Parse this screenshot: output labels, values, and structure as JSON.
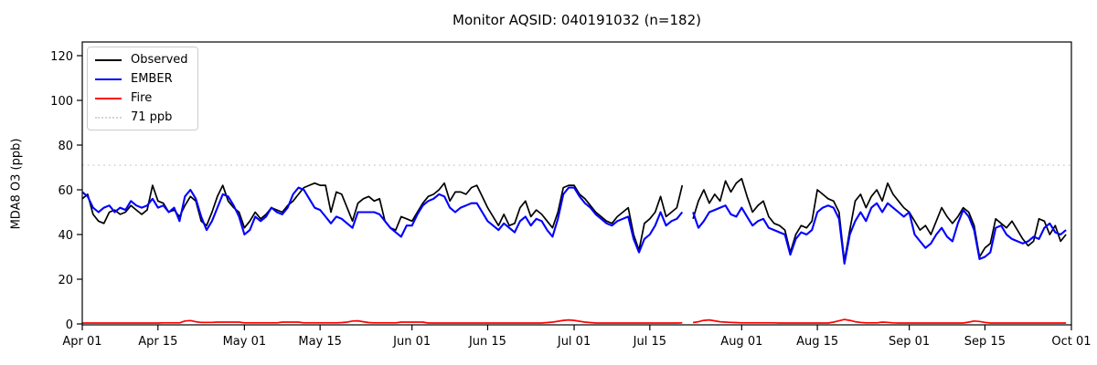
{
  "chart_data": {
    "type": "line",
    "title": "Monitor AQSID: 040191032 (n=182)",
    "xlabel": "",
    "ylabel": "MDA8 O3 (ppb)",
    "ylim": [
      0,
      126
    ],
    "yticks": [
      0,
      20,
      40,
      60,
      80,
      100,
      120
    ],
    "n_days": 183,
    "grid": false,
    "legend_position": "upper left",
    "xticks": [
      {
        "label": "Apr 01",
        "day": 0
      },
      {
        "label": "Apr 15",
        "day": 14
      },
      {
        "label": "May 01",
        "day": 30
      },
      {
        "label": "May 15",
        "day": 44
      },
      {
        "label": "Jun 01",
        "day": 61
      },
      {
        "label": "Jun 15",
        "day": 75
      },
      {
        "label": "Jul 01",
        "day": 91
      },
      {
        "label": "Jul 15",
        "day": 105
      },
      {
        "label": "Aug 01",
        "day": 122
      },
      {
        "label": "Aug 15",
        "day": 136
      },
      {
        "label": "Sep 01",
        "day": 153
      },
      {
        "label": "Sep 15",
        "day": 167
      },
      {
        "label": "Oct 01",
        "day": 183
      }
    ],
    "threshold": {
      "label": "71 ppb",
      "value": 71,
      "color": "#d3d3d3",
      "style": "dotted"
    },
    "series": [
      {
        "name": "Observed",
        "color": "#000000",
        "values": [
          56,
          58,
          49,
          46,
          45,
          50,
          51,
          49,
          50,
          53,
          51,
          49,
          51,
          62,
          55,
          54,
          50,
          51,
          48,
          53,
          57,
          55,
          46,
          44,
          50,
          57,
          62,
          55,
          52,
          50,
          43,
          46,
          50,
          47,
          49,
          52,
          51,
          50,
          53,
          55,
          58,
          61,
          62,
          63,
          62,
          62,
          50,
          59,
          58,
          52,
          46,
          54,
          56,
          57,
          55,
          56,
          46,
          43,
          42,
          48,
          47,
          46,
          50,
          54,
          57,
          58,
          60,
          63,
          55,
          59,
          59,
          58,
          61,
          62,
          57,
          52,
          48,
          44,
          49,
          44,
          45,
          52,
          55,
          48,
          51,
          49,
          46,
          43,
          50,
          61,
          62,
          62,
          58,
          56,
          53,
          50,
          48,
          46,
          45,
          48,
          50,
          52,
          40,
          33,
          45,
          47,
          50,
          57,
          48,
          50,
          52,
          62,
          null,
          47,
          55,
          60,
          54,
          58,
          55,
          64,
          59,
          63,
          65,
          57,
          50,
          53,
          55,
          48,
          45,
          44,
          42,
          32,
          40,
          44,
          43,
          46,
          60,
          58,
          56,
          55,
          50,
          28,
          42,
          55,
          58,
          52,
          57,
          60,
          55,
          63,
          58,
          55,
          52,
          50,
          46,
          42,
          44,
          40,
          46,
          52,
          48,
          45,
          48,
          52,
          50,
          44,
          30,
          34,
          36,
          47,
          45,
          43,
          46,
          42,
          38,
          35,
          37,
          47,
          46,
          40,
          44,
          37,
          40
        ]
      },
      {
        "name": "EMBER",
        "color": "#0000ff",
        "values": [
          59,
          57,
          52,
          50,
          52,
          53,
          50,
          52,
          51,
          55,
          53,
          52,
          53,
          56,
          52,
          53,
          50,
          52,
          46,
          57,
          60,
          56,
          48,
          42,
          46,
          52,
          58,
          57,
          53,
          48,
          40,
          42,
          48,
          46,
          48,
          52,
          50,
          49,
          52,
          58,
          61,
          60,
          56,
          52,
          51,
          48,
          45,
          48,
          47,
          45,
          43,
          50,
          50,
          50,
          50,
          49,
          46,
          43,
          41,
          39,
          44,
          44,
          49,
          53,
          55,
          56,
          58,
          57,
          52,
          50,
          52,
          53,
          54,
          54,
          50,
          46,
          44,
          42,
          45,
          43,
          41,
          46,
          48,
          44,
          47,
          46,
          42,
          39,
          47,
          58,
          61,
          61,
          57,
          54,
          52,
          49,
          47,
          45,
          44,
          46,
          47,
          48,
          38,
          32,
          38,
          40,
          44,
          50,
          44,
          46,
          47,
          50,
          null,
          50,
          43,
          46,
          50,
          51,
          52,
          53,
          49,
          48,
          52,
          48,
          44,
          46,
          47,
          43,
          42,
          41,
          40,
          31,
          38,
          41,
          40,
          42,
          50,
          52,
          53,
          52,
          47,
          27,
          40,
          46,
          50,
          46,
          52,
          54,
          50,
          54,
          52,
          50,
          48,
          50,
          40,
          37,
          34,
          36,
          40,
          43,
          39,
          37,
          45,
          51,
          48,
          42,
          29,
          30,
          32,
          43,
          44,
          40,
          38,
          37,
          36,
          37,
          39,
          38,
          43,
          45,
          41,
          40,
          42
        ]
      },
      {
        "name": "Fire",
        "color": "#ff0000",
        "values": [
          0.4,
          0.4,
          0.4,
          0.4,
          0.4,
          0.4,
          0.4,
          0.4,
          0.4,
          0.4,
          0.4,
          0.4,
          0.4,
          0.4,
          0.4,
          0.5,
          0.5,
          0.5,
          0.5,
          1.3,
          1.5,
          1.0,
          0.7,
          0.7,
          0.7,
          0.8,
          0.8,
          0.8,
          0.8,
          0.8,
          0.5,
          0.5,
          0.5,
          0.5,
          0.5,
          0.5,
          0.5,
          0.8,
          0.8,
          0.8,
          0.8,
          0.5,
          0.5,
          0.5,
          0.5,
          0.5,
          0.5,
          0.5,
          0.6,
          0.8,
          1.3,
          1.4,
          1.0,
          0.6,
          0.5,
          0.5,
          0.5,
          0.5,
          0.5,
          0.8,
          0.8,
          0.8,
          0.8,
          0.8,
          0.4,
          0.4,
          0.4,
          0.4,
          0.4,
          0.4,
          0.4,
          0.4,
          0.4,
          0.4,
          0.4,
          0.4,
          0.4,
          0.4,
          0.4,
          0.4,
          0.4,
          0.4,
          0.4,
          0.4,
          0.4,
          0.4,
          0.6,
          0.8,
          1.2,
          1.6,
          1.8,
          1.6,
          1.2,
          0.8,
          0.6,
          0.4,
          0.4,
          0.4,
          0.4,
          0.4,
          0.4,
          0.4,
          0.4,
          0.4,
          0.4,
          0.4,
          0.4,
          0.4,
          0.4,
          0.4,
          0.4,
          0.5,
          null,
          0.6,
          1.0,
          1.6,
          1.8,
          1.4,
          1.0,
          0.8,
          0.7,
          0.6,
          0.5,
          0.5,
          0.5,
          0.5,
          0.5,
          0.5,
          0.5,
          0.4,
          0.4,
          0.4,
          0.4,
          0.4,
          0.4,
          0.4,
          0.4,
          0.4,
          0.4,
          0.8,
          1.4,
          2.0,
          1.6,
          1.0,
          0.7,
          0.5,
          0.5,
          0.5,
          0.8,
          0.7,
          0.5,
          0.4,
          0.4,
          0.4,
          0.4,
          0.4,
          0.4,
          0.4,
          0.4,
          0.4,
          0.4,
          0.4,
          0.4,
          0.4,
          0.8,
          1.3,
          1.1,
          0.7,
          0.4,
          0.4,
          0.4,
          0.4,
          0.4,
          0.4,
          0.4,
          0.4,
          0.4,
          0.4,
          0.4,
          0.4,
          0.4,
          0.4,
          0.4
        ]
      }
    ]
  }
}
